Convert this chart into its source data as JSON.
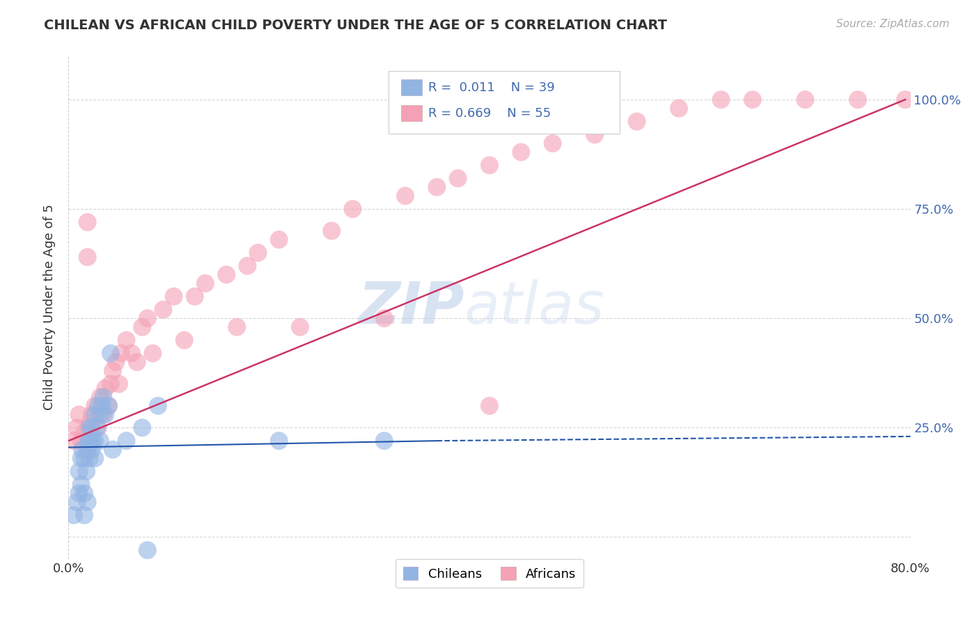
{
  "title": "CHILEAN VS AFRICAN CHILD POVERTY UNDER THE AGE OF 5 CORRELATION CHART",
  "source": "Source: ZipAtlas.com",
  "ylabel": "Child Poverty Under the Age of 5",
  "xlim": [
    0.0,
    0.8
  ],
  "ylim": [
    -0.05,
    1.1
  ],
  "yticks": [
    0.0,
    0.25,
    0.5,
    0.75,
    1.0
  ],
  "xticks": [
    0.0,
    0.8
  ],
  "xtick_labels": [
    "0.0%",
    "80.0%"
  ],
  "right_yticks": [
    0.25,
    0.5,
    0.75,
    1.0
  ],
  "right_ytick_labels": [
    "25.0%",
    "50.0%",
    "75.0%",
    "100.0%"
  ],
  "watermark_part1": "ZIP",
  "watermark_part2": "atlas",
  "chilean_color": "#92b4e3",
  "african_color": "#f4a0b5",
  "chilean_line_color": "#2255aa",
  "african_line_color": "#cc3366",
  "background_color": "#ffffff",
  "grid_color": "#cccccc",
  "chilean_scatter": {
    "x": [
      0.005,
      0.008,
      0.01,
      0.01,
      0.012,
      0.012,
      0.013,
      0.015,
      0.015,
      0.015,
      0.017,
      0.018,
      0.018,
      0.019,
      0.02,
      0.02,
      0.02,
      0.022,
      0.022,
      0.023,
      0.025,
      0.025,
      0.025,
      0.027,
      0.028,
      0.03,
      0.03,
      0.032,
      0.033,
      0.035,
      0.038,
      0.04,
      0.042,
      0.055,
      0.07,
      0.075,
      0.085,
      0.2,
      0.3
    ],
    "y": [
      0.05,
      0.08,
      0.1,
      0.15,
      0.12,
      0.18,
      0.2,
      0.05,
      0.1,
      0.18,
      0.15,
      0.08,
      0.2,
      0.22,
      0.18,
      0.22,
      0.25,
      0.2,
      0.25,
      0.22,
      0.18,
      0.22,
      0.28,
      0.25,
      0.3,
      0.22,
      0.28,
      0.3,
      0.32,
      0.28,
      0.3,
      0.42,
      0.2,
      0.22,
      0.25,
      -0.03,
      0.3,
      0.22,
      0.22
    ]
  },
  "african_scatter": {
    "x": [
      0.005,
      0.008,
      0.01,
      0.012,
      0.015,
      0.018,
      0.018,
      0.02,
      0.022,
      0.025,
      0.028,
      0.03,
      0.033,
      0.035,
      0.038,
      0.04,
      0.042,
      0.045,
      0.048,
      0.05,
      0.055,
      0.06,
      0.065,
      0.07,
      0.075,
      0.08,
      0.09,
      0.1,
      0.11,
      0.12,
      0.13,
      0.15,
      0.16,
      0.17,
      0.18,
      0.2,
      0.22,
      0.25,
      0.27,
      0.3,
      0.32,
      0.35,
      0.37,
      0.4,
      0.43,
      0.46,
      0.5,
      0.54,
      0.58,
      0.62,
      0.65,
      0.7,
      0.75,
      0.795,
      0.4
    ],
    "y": [
      0.22,
      0.25,
      0.28,
      0.22,
      0.24,
      0.72,
      0.64,
      0.26,
      0.28,
      0.3,
      0.25,
      0.32,
      0.28,
      0.34,
      0.3,
      0.35,
      0.38,
      0.4,
      0.35,
      0.42,
      0.45,
      0.42,
      0.4,
      0.48,
      0.5,
      0.42,
      0.52,
      0.55,
      0.45,
      0.55,
      0.58,
      0.6,
      0.48,
      0.62,
      0.65,
      0.68,
      0.48,
      0.7,
      0.75,
      0.5,
      0.78,
      0.8,
      0.82,
      0.85,
      0.88,
      0.9,
      0.92,
      0.95,
      0.98,
      1.0,
      1.0,
      1.0,
      1.0,
      1.0,
      0.3
    ]
  },
  "chilean_line": {
    "x0": 0.0,
    "x1": 0.35,
    "y0": 0.205,
    "y1": 0.22
  },
  "chilean_line_dashed": {
    "x0": 0.35,
    "x1": 0.8,
    "y0": 0.22,
    "y1": 0.23
  },
  "african_line": {
    "x0": 0.0,
    "x1": 0.795,
    "y0": 0.22,
    "y1": 1.0
  }
}
